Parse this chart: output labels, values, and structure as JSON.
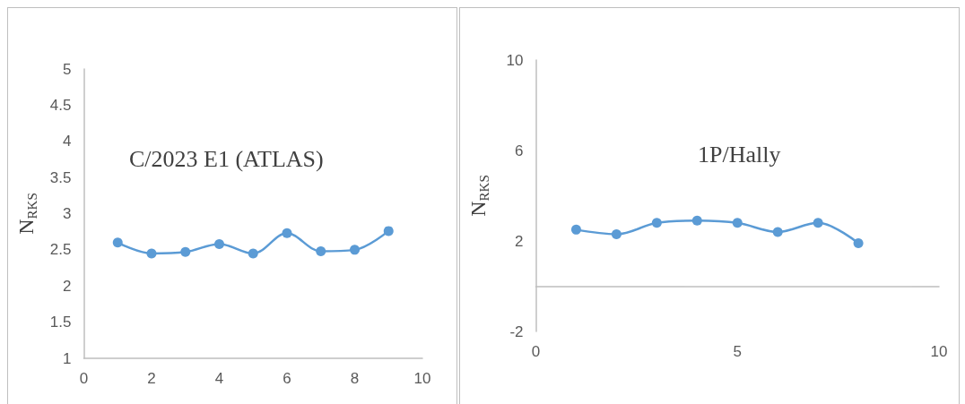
{
  "chart_data": [
    {
      "type": "line",
      "title": "C/2023 E1 (ATLAS)",
      "ylabel": "N$_{RKS}$",
      "x": [
        1,
        2,
        3,
        4,
        5,
        6,
        7,
        8,
        9
      ],
      "series": [
        {
          "color": "#5b9bd5",
          "values": [
            2.6,
            2.45,
            2.47,
            2.58,
            2.45,
            2.73,
            2.48,
            2.5,
            2.76
          ]
        }
      ],
      "xlim": [
        0,
        10
      ],
      "xticks": [
        0,
        2,
        4,
        6,
        8,
        10
      ],
      "ylim": [
        1,
        5
      ],
      "yticks": [
        1,
        1.5,
        2,
        2.5,
        3,
        3.5,
        4,
        4.5,
        5
      ],
      "grid": false,
      "marker": "circle",
      "line_style": "solid"
    },
    {
      "type": "line",
      "title": "1P/Hally",
      "ylabel": "N$_{RKS}$",
      "x": [
        1,
        2,
        3,
        4,
        5,
        6,
        7,
        8
      ],
      "series": [
        {
          "color": "#5b9bd5",
          "values": [
            2.5,
            2.3,
            2.8,
            2.9,
            2.8,
            2.4,
            2.8,
            1.9
          ]
        }
      ],
      "xlim": [
        0,
        10
      ],
      "xticks": [
        0,
        5,
        10
      ],
      "ylim": [
        -2,
        10
      ],
      "yticks": [
        -2,
        2,
        6,
        10
      ],
      "grid": false,
      "marker": "circle",
      "line_style": "solid"
    }
  ]
}
